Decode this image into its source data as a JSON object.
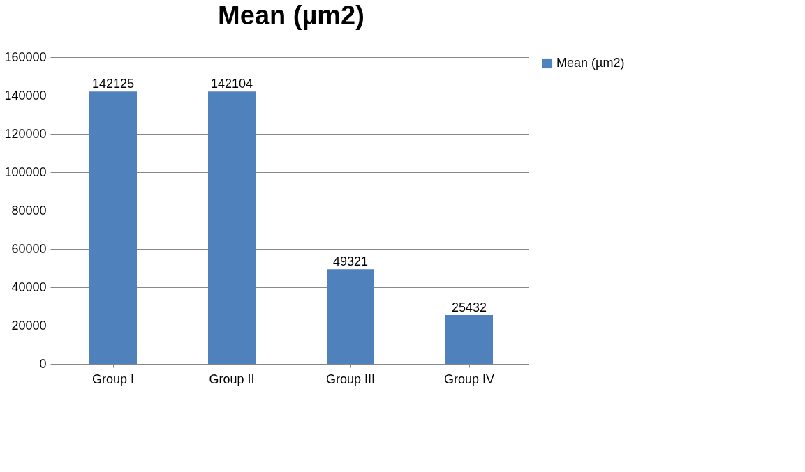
{
  "chart_data": {
    "type": "bar",
    "title": "Mean (µm2)",
    "categories": [
      "Group I",
      "Group II",
      "Group III",
      "Group IV"
    ],
    "series": [
      {
        "name": "Mean (µm2)",
        "color": "#4f81bd",
        "values": [
          142125,
          142104,
          49321,
          25432
        ]
      }
    ],
    "ylim": [
      0,
      160000
    ],
    "yticks": [
      0,
      20000,
      40000,
      60000,
      80000,
      100000,
      120000,
      140000,
      160000
    ],
    "grid": "y",
    "legend": "right",
    "data_labels": true
  }
}
